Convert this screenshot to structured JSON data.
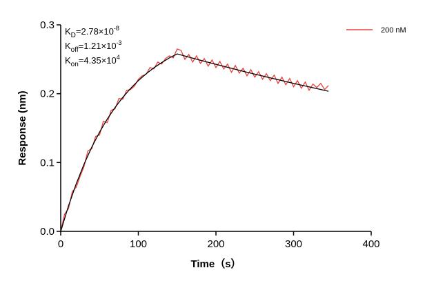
{
  "chart_data": {
    "type": "line",
    "xlabel": "Time（s）",
    "ylabel": "Response (nm)",
    "xlim": [
      0,
      400
    ],
    "ylim": [
      0,
      0.3
    ],
    "xticks": [
      0,
      100,
      200,
      300,
      400
    ],
    "yticks": [
      {
        "value": 0,
        "label": "0.0"
      },
      0.1,
      0.2,
      0.3
    ],
    "legend": "upper right",
    "annotations": [
      {
        "symbol": "K",
        "subscript": "D",
        "text": "=2.78×10",
        "superscript": "-8"
      },
      {
        "symbol": "K",
        "subscript": "off",
        "text": "=1.21×10",
        "superscript": "-3"
      },
      {
        "symbol": "K",
        "subscript": "on",
        "text": "=4.35×10",
        "superscript": "4"
      }
    ],
    "series": [
      {
        "name": "200 nM",
        "color": "#e8413c",
        "x": [
          0,
          5,
          10,
          15,
          20,
          25,
          30,
          35,
          40,
          45,
          50,
          55,
          60,
          65,
          70,
          75,
          80,
          85,
          90,
          95,
          100,
          105,
          110,
          115,
          120,
          125,
          130,
          135,
          140,
          145,
          150,
          155,
          160,
          165,
          170,
          175,
          180,
          185,
          190,
          195,
          200,
          205,
          210,
          215,
          220,
          225,
          230,
          235,
          240,
          245,
          250,
          255,
          260,
          265,
          270,
          275,
          280,
          285,
          290,
          295,
          300,
          305,
          310,
          315,
          320,
          325,
          330,
          335,
          340,
          345
        ],
        "values": [
          0,
          0.025,
          0.033,
          0.058,
          0.064,
          0.08,
          0.094,
          0.117,
          0.12,
          0.138,
          0.14,
          0.16,
          0.158,
          0.176,
          0.178,
          0.193,
          0.192,
          0.205,
          0.206,
          0.211,
          0.221,
          0.226,
          0.228,
          0.238,
          0.236,
          0.246,
          0.243,
          0.251,
          0.255,
          0.252,
          0.265,
          0.263,
          0.25,
          0.257,
          0.246,
          0.255,
          0.244,
          0.251,
          0.24,
          0.249,
          0.238,
          0.247,
          0.236,
          0.243,
          0.231,
          0.241,
          0.23,
          0.237,
          0.226,
          0.235,
          0.224,
          0.232,
          0.221,
          0.229,
          0.219,
          0.227,
          0.215,
          0.224,
          0.213,
          0.222,
          0.21,
          0.219,
          0.208,
          0.217,
          0.205,
          0.214,
          0.209,
          0.215,
          0.206,
          0.212
        ]
      }
    ],
    "fit": {
      "color": "#000000",
      "x": [
        0,
        10,
        20,
        30,
        40,
        50,
        60,
        70,
        80,
        90,
        100,
        110,
        120,
        130,
        140,
        150,
        160,
        180,
        200,
        220,
        240,
        260,
        280,
        300,
        320,
        345
      ],
      "values": [
        0,
        0.0369,
        0.0691,
        0.0975,
        0.1224,
        0.144,
        0.1632,
        0.18,
        0.1947,
        0.2076,
        0.219,
        0.2289,
        0.2376,
        0.2451,
        0.252,
        0.2578,
        0.2547,
        0.2486,
        0.2427,
        0.2369,
        0.2312,
        0.2257,
        0.2203,
        0.215,
        0.2099,
        0.2036
      ]
    }
  }
}
